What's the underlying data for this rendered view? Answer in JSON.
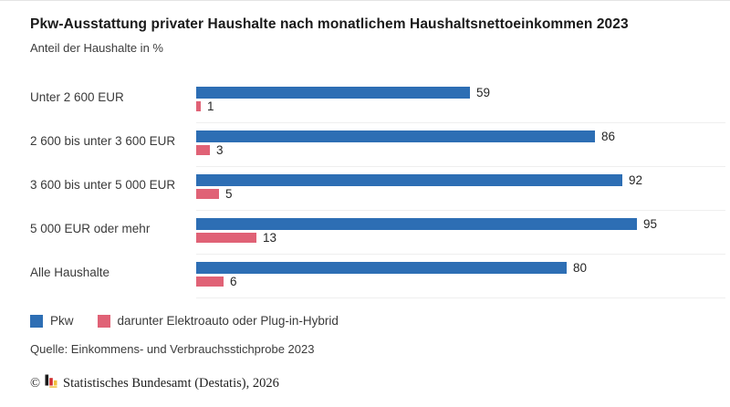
{
  "header": {
    "title": "Pkw-Ausstattung privater Haushalte nach monatlichem Haushaltsnettoeinkommen 2023",
    "subtitle": "Anteil der Haushalte in %"
  },
  "chart_data": {
    "type": "bar",
    "orientation": "horizontal",
    "title": "Pkw-Ausstattung privater Haushalte nach monatlichem Haushaltsnettoeinkommen 2023",
    "unit_label": "Anteil der Haushalte in %",
    "categories": [
      "Unter 2 600 EUR",
      "2 600 bis unter 3 600 EUR",
      "3 600 bis unter 5 000 EUR",
      "5 000 EUR oder mehr",
      "Alle Haushalte"
    ],
    "series": [
      {
        "name": "Pkw",
        "color": "#2d6eb4",
        "values": [
          59,
          86,
          92,
          95,
          80
        ]
      },
      {
        "name": "darunter Elektroauto oder Plug-in-Hybrid",
        "color": "#e06276",
        "values": [
          1,
          3,
          5,
          13,
          6
        ]
      }
    ],
    "xlim": [
      0,
      100
    ],
    "value_labels": true,
    "grid": false,
    "legend_position": "bottom"
  },
  "source": "Quelle: Einkommens- und Verbrauchsstichprobe 2023",
  "footer": {
    "copyright_symbol": "©",
    "text": "Statistisches Bundesamt (Destatis), 2026"
  },
  "colors": {
    "primary_bar": "#2d6eb4",
    "secondary_bar": "#e06276",
    "separator": "#efefef"
  }
}
